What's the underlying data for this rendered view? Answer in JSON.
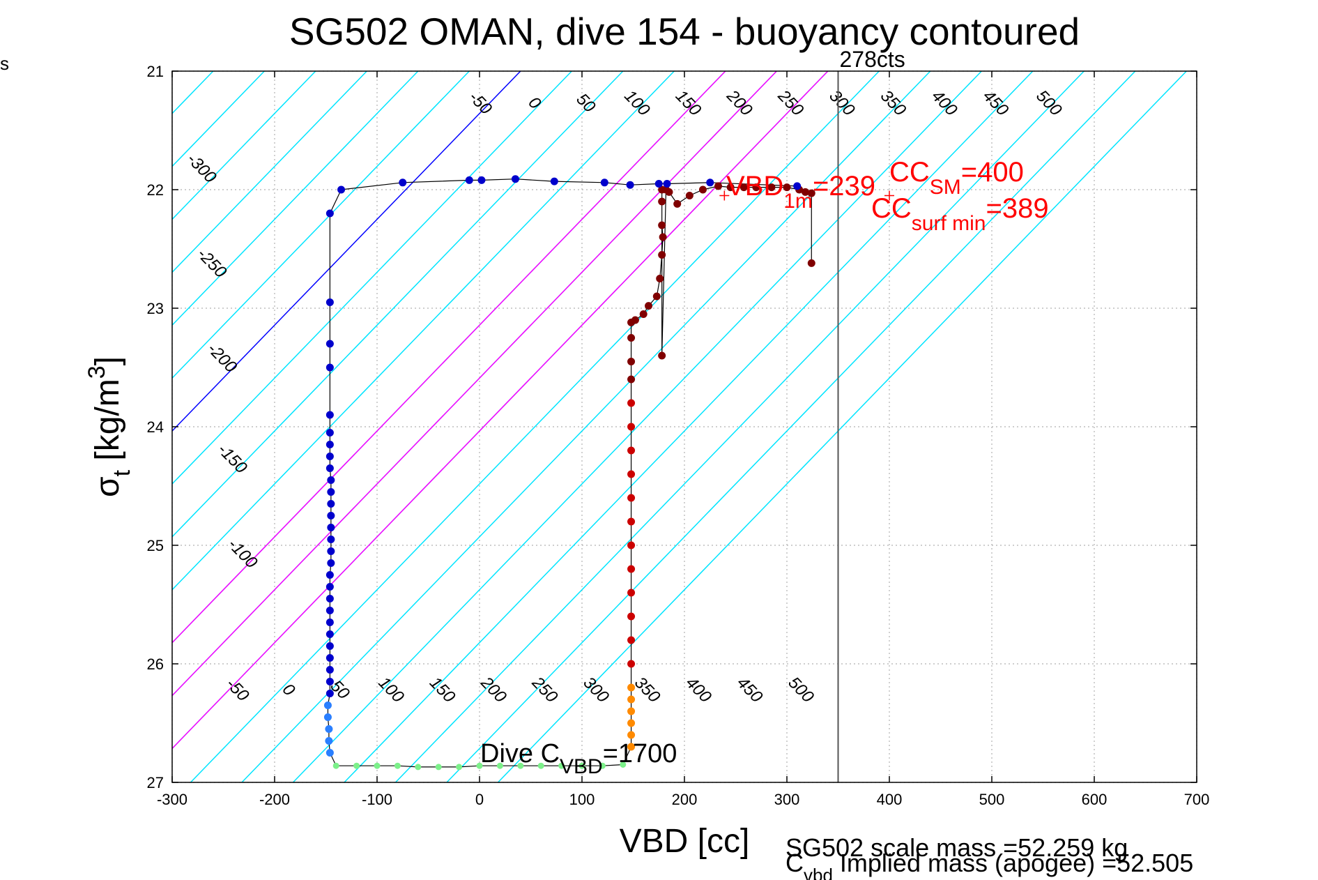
{
  "chart_data": {
    "type": "scatter",
    "title": "SG502 OMAN, dive 154 - buoyancy contoured",
    "xlabel": "VBD [cc]",
    "ylabel_main": "σ",
    "ylabel_sub": "t",
    "ylabel_rest": " [kg/m",
    "ylabel_sup": "3",
    "ylabel_close": "]",
    "corner_label": "s",
    "xlim": [
      -300,
      700
    ],
    "ylim": [
      27,
      21
    ],
    "x_ticks": [
      -300,
      -200,
      -100,
      0,
      100,
      200,
      300,
      400,
      500,
      600,
      700
    ],
    "y_ticks": [
      21,
      22,
      23,
      24,
      25,
      26,
      27
    ],
    "x_tick_labels": [
      "-300",
      "-200",
      "-100",
      "0",
      "100",
      "200",
      "300",
      "400",
      "500",
      "600",
      "700"
    ],
    "y_tick_labels": [
      "21",
      "22",
      "23",
      "24",
      "25",
      "26",
      "27"
    ],
    "grid": true,
    "vertical_line": {
      "x": 350,
      "label": "278cts"
    },
    "contour_slope": 112,
    "contours_top": {
      "anchor_y": 21.3,
      "labels": [
        "-50",
        "0",
        "50",
        "100",
        "150",
        "200",
        "250",
        "300",
        "350",
        "400",
        "450",
        "500"
      ],
      "x_at_anchor": [
        -3,
        50,
        100,
        150,
        200,
        250,
        300,
        350,
        400,
        450,
        500,
        552
      ]
    },
    "contours_left_labels": [
      {
        "label": "-300",
        "x": -275,
        "y": 21.85
      },
      {
        "label": "-250",
        "x": -265,
        "y": 22.65
      },
      {
        "label": "-200",
        "x": -255,
        "y": 23.45
      },
      {
        "label": "-150",
        "x": -245,
        "y": 24.3
      },
      {
        "label": "-100",
        "x": -235,
        "y": 25.1
      }
    ],
    "contours_bottom": {
      "anchor_y": 26.25,
      "labels": [
        "-50",
        "0",
        "50",
        "100",
        "150",
        "200",
        "250",
        "300",
        "350",
        "400",
        "450",
        "500"
      ],
      "x_at_anchor": [
        -240,
        -190,
        -140,
        -90,
        -40,
        10,
        60,
        110,
        160,
        210,
        260,
        310
      ]
    },
    "contour_lines": {
      "cyan": [
        -460,
        -410,
        -360,
        -310,
        -260,
        -210,
        -160,
        -110,
        -60,
        -10,
        90,
        140,
        190,
        240,
        290,
        340,
        390,
        440,
        490,
        540,
        590,
        640,
        690
      ],
      "blue": 40,
      "magenta": [
        240,
        290,
        340
      ]
    },
    "annotations": {
      "vbd1m_main": "VBD",
      "vbd1m_sub": "1m",
      "vbd1m_val": "=239",
      "ccsm_main": "CC",
      "ccsm_sub": "SM",
      "ccsm_val": "=400",
      "ccsurf_main": "CC",
      "ccsurf_sub": "surf min",
      "ccsurf_val": "=389",
      "dive_main": "Dive C",
      "dive_sub": "VBD",
      "dive_val": "=1700",
      "scale_mass": "SG502 scale mass =52.259 kg",
      "implied_main": "C",
      "implied_sub": "vbd",
      "implied_rest": " Implied mass (apogee) =52.505"
    },
    "markers": {
      "vbd1m": {
        "x": 239,
        "y": 22.05
      },
      "ccsm": {
        "x": 400,
        "y": 22.05
      }
    },
    "series": [
      {
        "segment": "dive-descent",
        "color": "#0000cc",
        "points": [
          [
            -146,
            22.2
          ],
          [
            -146,
            22.95
          ],
          [
            -146,
            23.3
          ],
          [
            -146,
            23.5
          ],
          [
            -146,
            23.9
          ],
          [
            -146,
            24.05
          ],
          [
            -146,
            24.15
          ],
          [
            -146,
            24.25
          ],
          [
            -146,
            24.35
          ],
          [
            -145,
            24.45
          ],
          [
            -145,
            24.55
          ],
          [
            -145,
            24.65
          ],
          [
            -145,
            24.75
          ],
          [
            -145,
            24.85
          ],
          [
            -145,
            24.95
          ],
          [
            -145,
            25.05
          ],
          [
            -145,
            25.15
          ],
          [
            -146,
            25.25
          ],
          [
            -146,
            25.35
          ],
          [
            -146,
            25.45
          ],
          [
            -146,
            25.55
          ],
          [
            -146,
            25.65
          ],
          [
            -146,
            25.75
          ],
          [
            -146,
            25.85
          ],
          [
            -146,
            25.95
          ],
          [
            -146,
            26.05
          ],
          [
            -146,
            26.15
          ],
          [
            -146,
            26.25
          ]
        ]
      },
      {
        "segment": "dive-deep",
        "color": "#2a7fff",
        "points": [
          [
            -148,
            26.35
          ],
          [
            -148,
            26.45
          ],
          [
            -147,
            26.55
          ],
          [
            -147,
            26.65
          ],
          [
            -146,
            26.75
          ]
        ]
      },
      {
        "segment": "bottom-pump",
        "color": "#7cf08a",
        "points": [
          [
            -140,
            26.86
          ],
          [
            -120,
            26.86
          ],
          [
            -100,
            26.86
          ],
          [
            -80,
            26.86
          ],
          [
            -60,
            26.87
          ],
          [
            -40,
            26.87
          ],
          [
            -20,
            26.87
          ],
          [
            0,
            26.86
          ],
          [
            20,
            26.86
          ],
          [
            40,
            26.86
          ],
          [
            60,
            26.86
          ],
          [
            80,
            26.86
          ],
          [
            100,
            26.86
          ],
          [
            120,
            26.86
          ],
          [
            140,
            26.85
          ]
        ]
      },
      {
        "segment": "climb-deep",
        "color": "#ff8a00",
        "points": [
          [
            148,
            26.7
          ],
          [
            148,
            26.6
          ],
          [
            148,
            26.5
          ],
          [
            148,
            26.4
          ],
          [
            148,
            26.3
          ],
          [
            148,
            26.2
          ]
        ]
      },
      {
        "segment": "climb-mid",
        "color": "#cc0000",
        "points": [
          [
            148,
            26.0
          ],
          [
            148,
            25.8
          ],
          [
            148,
            25.6
          ],
          [
            148,
            25.4
          ],
          [
            148,
            25.2
          ],
          [
            148,
            25.0
          ],
          [
            148,
            24.8
          ],
          [
            148,
            24.6
          ],
          [
            148,
            24.4
          ],
          [
            148,
            24.2
          ],
          [
            148,
            24.0
          ],
          [
            148,
            23.8
          ]
        ]
      },
      {
        "segment": "climb-shallow",
        "color": "#800000",
        "points": [
          [
            148,
            23.6
          ],
          [
            148,
            23.45
          ],
          [
            148,
            23.25
          ],
          [
            148,
            23.12
          ],
          [
            152,
            23.1
          ],
          [
            160,
            23.05
          ],
          [
            165,
            22.98
          ],
          [
            173,
            22.9
          ],
          [
            176,
            22.75
          ],
          [
            178,
            22.55
          ],
          [
            179,
            22.4
          ],
          [
            178,
            22.3
          ],
          [
            178,
            22.1
          ],
          [
            178,
            22.0
          ],
          [
            178,
            23.4
          ],
          [
            182,
            22.0
          ],
          [
            185,
            22.02
          ],
          [
            193,
            22.12
          ],
          [
            205,
            22.05
          ],
          [
            218,
            22.0
          ],
          [
            233,
            21.97
          ],
          [
            245,
            21.98
          ],
          [
            258,
            21.98
          ],
          [
            270,
            21.98
          ],
          [
            285,
            21.98
          ],
          [
            300,
            21.98
          ],
          [
            312,
            22.0
          ],
          [
            318,
            22.02
          ],
          [
            324,
            22.03
          ],
          [
            324,
            22.62
          ]
        ]
      },
      {
        "segment": "surface-drift",
        "color": "#0000cc",
        "points": [
          [
            -135,
            22.0
          ],
          [
            -75,
            21.94
          ],
          [
            -10,
            21.92
          ],
          [
            2,
            21.92
          ],
          [
            35,
            21.91
          ],
          [
            73,
            21.93
          ],
          [
            122,
            21.94
          ],
          [
            147,
            21.96
          ],
          [
            175,
            21.95
          ],
          [
            183,
            21.95
          ],
          [
            225,
            21.94
          ],
          [
            310,
            21.97
          ]
        ]
      }
    ]
  }
}
